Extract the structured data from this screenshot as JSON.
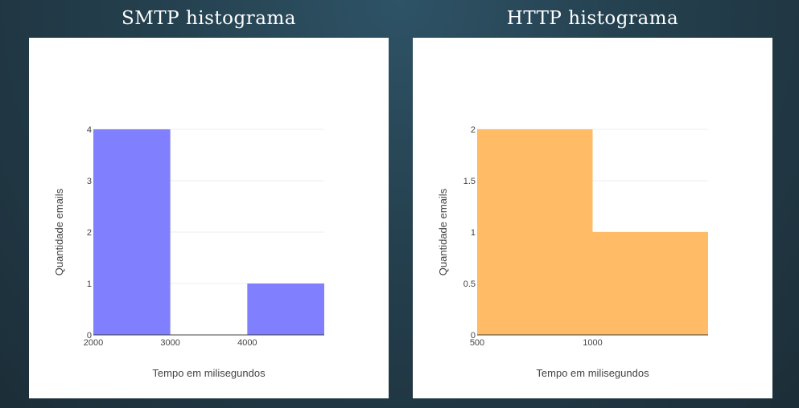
{
  "charts": [
    {
      "title": "SMTP histograma",
      "chart_data": {
        "type": "bar",
        "bins": [
          {
            "x0": 2000,
            "x1": 3000,
            "count": 4
          },
          {
            "x0": 3000,
            "x1": 4000,
            "count": 0
          },
          {
            "x0": 4000,
            "x1": 5000,
            "count": 1
          }
        ],
        "xlim": [
          2000,
          5000
        ],
        "ylim": [
          0,
          4
        ],
        "xticks": [
          2000,
          3000,
          4000
        ],
        "xtick_labels": [
          "2000",
          "3000",
          "4000"
        ],
        "yticks": [
          0,
          1,
          2,
          3,
          4
        ],
        "ytick_labels": [
          "0",
          "1",
          "2",
          "3",
          "4"
        ],
        "xlabel": "Tempo em milisegundos",
        "ylabel": "Quantidade emails",
        "color": "#8080ff",
        "grid": true
      }
    },
    {
      "title": "HTTP histograma",
      "chart_data": {
        "type": "bar",
        "bins": [
          {
            "x0": 500,
            "x1": 1000,
            "count": 2
          },
          {
            "x0": 1000,
            "x1": 1500,
            "count": 1
          }
        ],
        "xlim": [
          500,
          1500
        ],
        "ylim": [
          0,
          2
        ],
        "xticks": [
          500,
          1000
        ],
        "xtick_labels": [
          "500",
          "1000"
        ],
        "yticks": [
          0,
          0.5,
          1,
          1.5,
          2
        ],
        "ytick_labels": [
          "0",
          "0.5",
          "1",
          "1.5",
          "2"
        ],
        "xlabel": "Tempo em milisegundos",
        "ylabel": "Quantidade emails",
        "color": "#ffbb66",
        "grid": true
      }
    }
  ]
}
